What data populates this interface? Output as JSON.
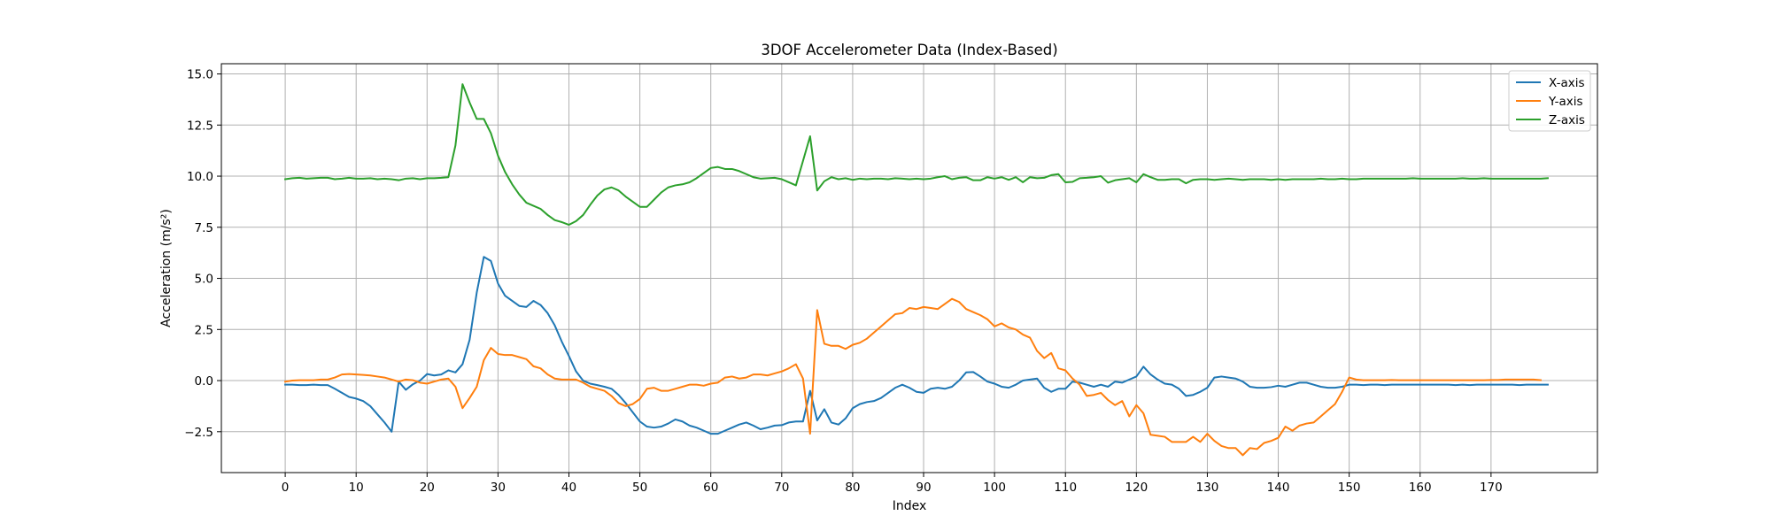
{
  "chart_data": {
    "type": "line",
    "title": "3DOF Accelerometer Data (Index-Based)",
    "xlabel": "Index",
    "ylabel": "Acceleration (m/s²)",
    "xlim": [
      -9,
      185
    ],
    "ylim": [
      -4.5,
      15.5
    ],
    "xticks": [
      0,
      10,
      20,
      30,
      40,
      50,
      60,
      70,
      80,
      90,
      100,
      110,
      120,
      130,
      140,
      150,
      160,
      170
    ],
    "yticks": [
      -2.5,
      0.0,
      2.5,
      5.0,
      7.5,
      10.0,
      12.5,
      15.0
    ],
    "ytick_labels": [
      "−2.5",
      "0.0",
      "2.5",
      "5.0",
      "7.5",
      "10.0",
      "12.5",
      "15.0"
    ],
    "grid": true,
    "legend_position": "top-right",
    "series": [
      {
        "name": "X-axis",
        "color": "#1f77b4",
        "values": [
          -0.2,
          -0.2,
          -0.22,
          -0.22,
          -0.2,
          -0.22,
          -0.22,
          -0.4,
          -0.6,
          -0.8,
          -0.88,
          -1.0,
          -1.25,
          -1.65,
          -2.05,
          -2.5,
          -0.05,
          -0.45,
          -0.18,
          0.0,
          0.32,
          0.25,
          0.3,
          0.5,
          0.4,
          0.8,
          2.0,
          4.3,
          6.05,
          5.85,
          4.75,
          4.15,
          3.9,
          3.65,
          3.6,
          3.9,
          3.7,
          3.3,
          2.7,
          1.9,
          1.2,
          0.45,
          0.0,
          -0.15,
          -0.22,
          -0.3,
          -0.4,
          -0.7,
          -1.1,
          -1.55,
          -2.0,
          -2.25,
          -2.3,
          -2.25,
          -2.1,
          -1.9,
          -2.0,
          -2.2,
          -2.3,
          -2.45,
          -2.6,
          -2.6,
          -2.45,
          -2.3,
          -2.15,
          -2.05,
          -2.2,
          -2.38,
          -2.3,
          -2.2,
          -2.18,
          -2.05,
          -2.0,
          -2.0,
          -0.5,
          -1.95,
          -1.4,
          -2.05,
          -2.15,
          -1.85,
          -1.35,
          -1.15,
          -1.05,
          -1.0,
          -0.85,
          -0.6,
          -0.35,
          -0.2,
          -0.35,
          -0.55,
          -0.6,
          -0.4,
          -0.35,
          -0.4,
          -0.3,
          0.0,
          0.4,
          0.42,
          0.2,
          -0.05,
          -0.15,
          -0.3,
          -0.35,
          -0.2,
          0.0,
          0.05,
          0.1,
          -0.35,
          -0.55,
          -0.4,
          -0.4,
          -0.05,
          -0.1,
          -0.2,
          -0.3,
          -0.2,
          -0.3,
          -0.05,
          -0.1,
          0.05,
          0.2,
          0.68,
          0.3,
          0.05,
          -0.15,
          -0.2,
          -0.4,
          -0.75,
          -0.7,
          -0.55,
          -0.35,
          0.15,
          0.2,
          0.15,
          0.1,
          -0.05,
          -0.3,
          -0.35,
          -0.35,
          -0.32,
          -0.25,
          -0.3,
          -0.2,
          -0.1,
          -0.1,
          -0.2,
          -0.3,
          -0.35,
          -0.35,
          -0.3,
          -0.2,
          -0.2,
          -0.22,
          -0.2,
          -0.2,
          -0.22,
          -0.2,
          -0.2,
          -0.2,
          -0.2,
          -0.2,
          -0.2,
          -0.2,
          -0.2,
          -0.2,
          -0.22,
          -0.2,
          -0.22,
          -0.2,
          -0.2,
          -0.2,
          -0.2,
          -0.2,
          -0.2,
          -0.22,
          -0.2,
          -0.2,
          -0.2,
          -0.2
        ]
      },
      {
        "name": "Y-axis",
        "color": "#ff7f0e",
        "values": [
          -0.05,
          0.0,
          0.02,
          0.02,
          0.02,
          0.05,
          0.05,
          0.15,
          0.3,
          0.32,
          0.3,
          0.28,
          0.25,
          0.2,
          0.15,
          0.05,
          -0.05,
          0.05,
          0.02,
          -0.1,
          -0.15,
          -0.05,
          0.05,
          0.1,
          -0.3,
          -1.35,
          -0.85,
          -0.3,
          1.0,
          1.6,
          1.3,
          1.25,
          1.25,
          1.15,
          1.05,
          0.7,
          0.6,
          0.3,
          0.1,
          0.05,
          0.05,
          0.05,
          -0.1,
          -0.3,
          -0.4,
          -0.5,
          -0.75,
          -1.1,
          -1.25,
          -1.15,
          -0.9,
          -0.4,
          -0.35,
          -0.5,
          -0.5,
          -0.4,
          -0.3,
          -0.2,
          -0.2,
          -0.25,
          -0.15,
          -0.1,
          0.15,
          0.2,
          0.1,
          0.15,
          0.3,
          0.3,
          0.25,
          0.35,
          0.45,
          0.6,
          0.8,
          0.1,
          -2.6,
          3.45,
          1.8,
          1.7,
          1.7,
          1.55,
          1.75,
          1.85,
          2.05,
          2.35,
          2.65,
          2.95,
          3.25,
          3.3,
          3.55,
          3.5,
          3.6,
          3.55,
          3.5,
          3.75,
          4.0,
          3.85,
          3.5,
          3.35,
          3.2,
          3.0,
          2.65,
          2.8,
          2.6,
          2.5,
          2.25,
          2.1,
          1.45,
          1.1,
          1.35,
          0.6,
          0.5,
          0.1,
          -0.2,
          -0.75,
          -0.7,
          -0.6,
          -0.95,
          -1.2,
          -1.0,
          -1.75,
          -1.2,
          -1.6,
          -2.65,
          -2.7,
          -2.75,
          -3.0,
          -3.0,
          -3.0,
          -2.75,
          -3.0,
          -2.6,
          -2.95,
          -3.2,
          -3.3,
          -3.3,
          -3.65,
          -3.3,
          -3.35,
          -3.05,
          -2.95,
          -2.8,
          -2.25,
          -2.45,
          -2.2,
          -2.1,
          -2.05,
          -1.75,
          -1.45,
          -1.15,
          -0.55,
          0.15,
          0.05,
          0.02,
          0.02,
          0.02,
          0.02,
          0.03,
          0.02,
          0.02,
          0.02,
          0.02,
          0.02,
          0.02,
          0.02,
          0.02,
          0.02,
          0.02,
          0.02,
          0.02,
          0.02,
          0.03,
          0.03,
          0.05,
          0.05,
          0.05,
          0.05,
          0.05,
          0.02
        ]
      },
      {
        "name": "Z-axis",
        "color": "#2ca02c",
        "values": [
          9.85,
          9.9,
          9.92,
          9.88,
          9.9,
          9.92,
          9.92,
          9.85,
          9.88,
          9.92,
          9.88,
          9.88,
          9.9,
          9.85,
          9.88,
          9.85,
          9.8,
          9.88,
          9.9,
          9.85,
          9.9,
          9.9,
          9.92,
          9.95,
          11.5,
          14.5,
          13.6,
          12.8,
          12.8,
          12.1,
          11.0,
          10.2,
          9.6,
          9.1,
          8.7,
          8.55,
          8.4,
          8.1,
          7.85,
          7.75,
          7.62,
          7.8,
          8.1,
          8.6,
          9.05,
          9.35,
          9.45,
          9.3,
          9.0,
          8.75,
          8.5,
          8.5,
          8.85,
          9.2,
          9.45,
          9.55,
          9.6,
          9.7,
          9.9,
          10.15,
          10.4,
          10.45,
          10.35,
          10.35,
          10.25,
          10.1,
          9.95,
          9.88,
          9.9,
          9.92,
          9.85,
          9.7,
          9.55,
          10.75,
          11.95,
          9.3,
          9.75,
          9.95,
          9.85,
          9.9,
          9.82,
          9.88,
          9.85,
          9.88,
          9.88,
          9.85,
          9.9,
          9.88,
          9.85,
          9.88,
          9.85,
          9.88,
          9.95,
          10.0,
          9.85,
          9.92,
          9.95,
          9.8,
          9.8,
          9.95,
          9.88,
          9.95,
          9.82,
          9.95,
          9.7,
          9.95,
          9.9,
          9.92,
          10.05,
          10.1,
          9.7,
          9.72,
          9.9,
          9.92,
          9.95,
          10.0,
          9.68,
          9.8,
          9.85,
          9.9,
          9.7,
          10.1,
          9.95,
          9.82,
          9.82,
          9.85,
          9.85,
          9.65,
          9.82,
          9.85,
          9.85,
          9.82,
          9.85,
          9.88,
          9.85,
          9.82,
          9.85,
          9.85,
          9.85,
          9.82,
          9.85,
          9.82,
          9.85,
          9.85,
          9.85,
          9.85,
          9.88,
          9.85,
          9.85,
          9.88,
          9.85,
          9.85,
          9.88,
          9.88,
          9.88,
          9.88,
          9.88,
          9.88,
          9.88,
          9.9,
          9.88,
          9.88,
          9.88,
          9.88,
          9.88,
          9.88,
          9.9,
          9.88,
          9.88,
          9.9,
          9.88,
          9.88,
          9.88,
          9.88,
          9.88,
          9.88,
          9.88,
          9.88,
          9.9
        ]
      }
    ]
  }
}
